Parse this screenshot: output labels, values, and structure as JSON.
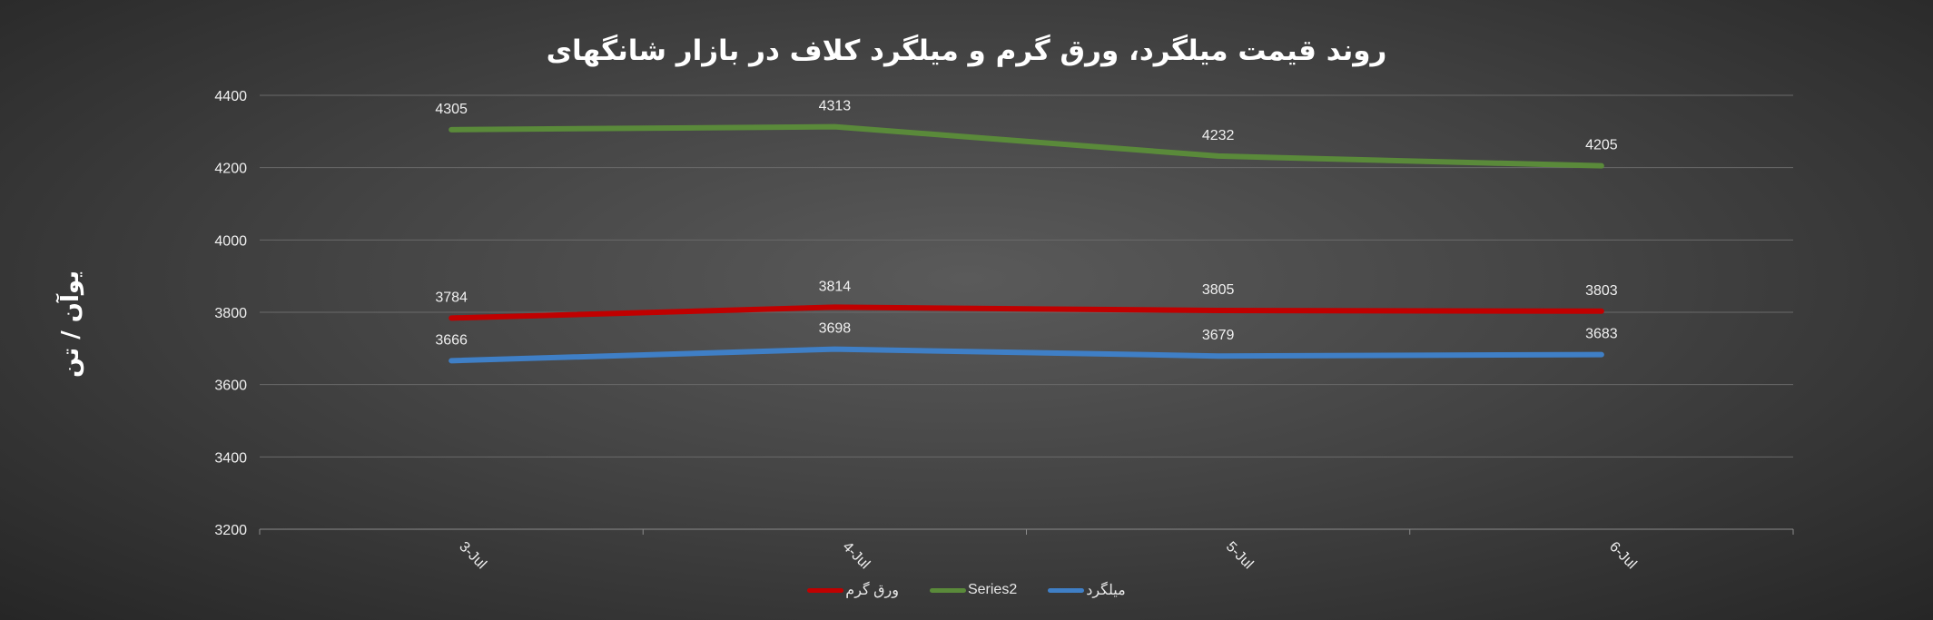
{
  "chart_data": {
    "type": "line",
    "title": "روند قیمت میلگرد، ورق گرم و میلگرد کلاف در بازار شانگهای",
    "xlabel": "",
    "ylabel": "یوآن / تن",
    "categories": [
      "3-Jul",
      "4-Jul",
      "5-Jul",
      "6-Jul"
    ],
    "ylim": [
      3200,
      4400
    ],
    "yticks": [
      3200,
      3400,
      3600,
      3800,
      4000,
      4200,
      4400
    ],
    "grid": true,
    "legend_position": "bottom",
    "series": [
      {
        "name": "میلگرد",
        "color": "#3f7fc6",
        "values": [
          3666,
          3698,
          3679,
          3683
        ]
      },
      {
        "name": "Series2",
        "color": "#5a8a3a",
        "values": [
          4305,
          4313,
          4232,
          4205
        ]
      },
      {
        "name": "ورق گرم",
        "color": "#c00000",
        "values": [
          3784,
          3814,
          3805,
          3803
        ]
      }
    ]
  }
}
